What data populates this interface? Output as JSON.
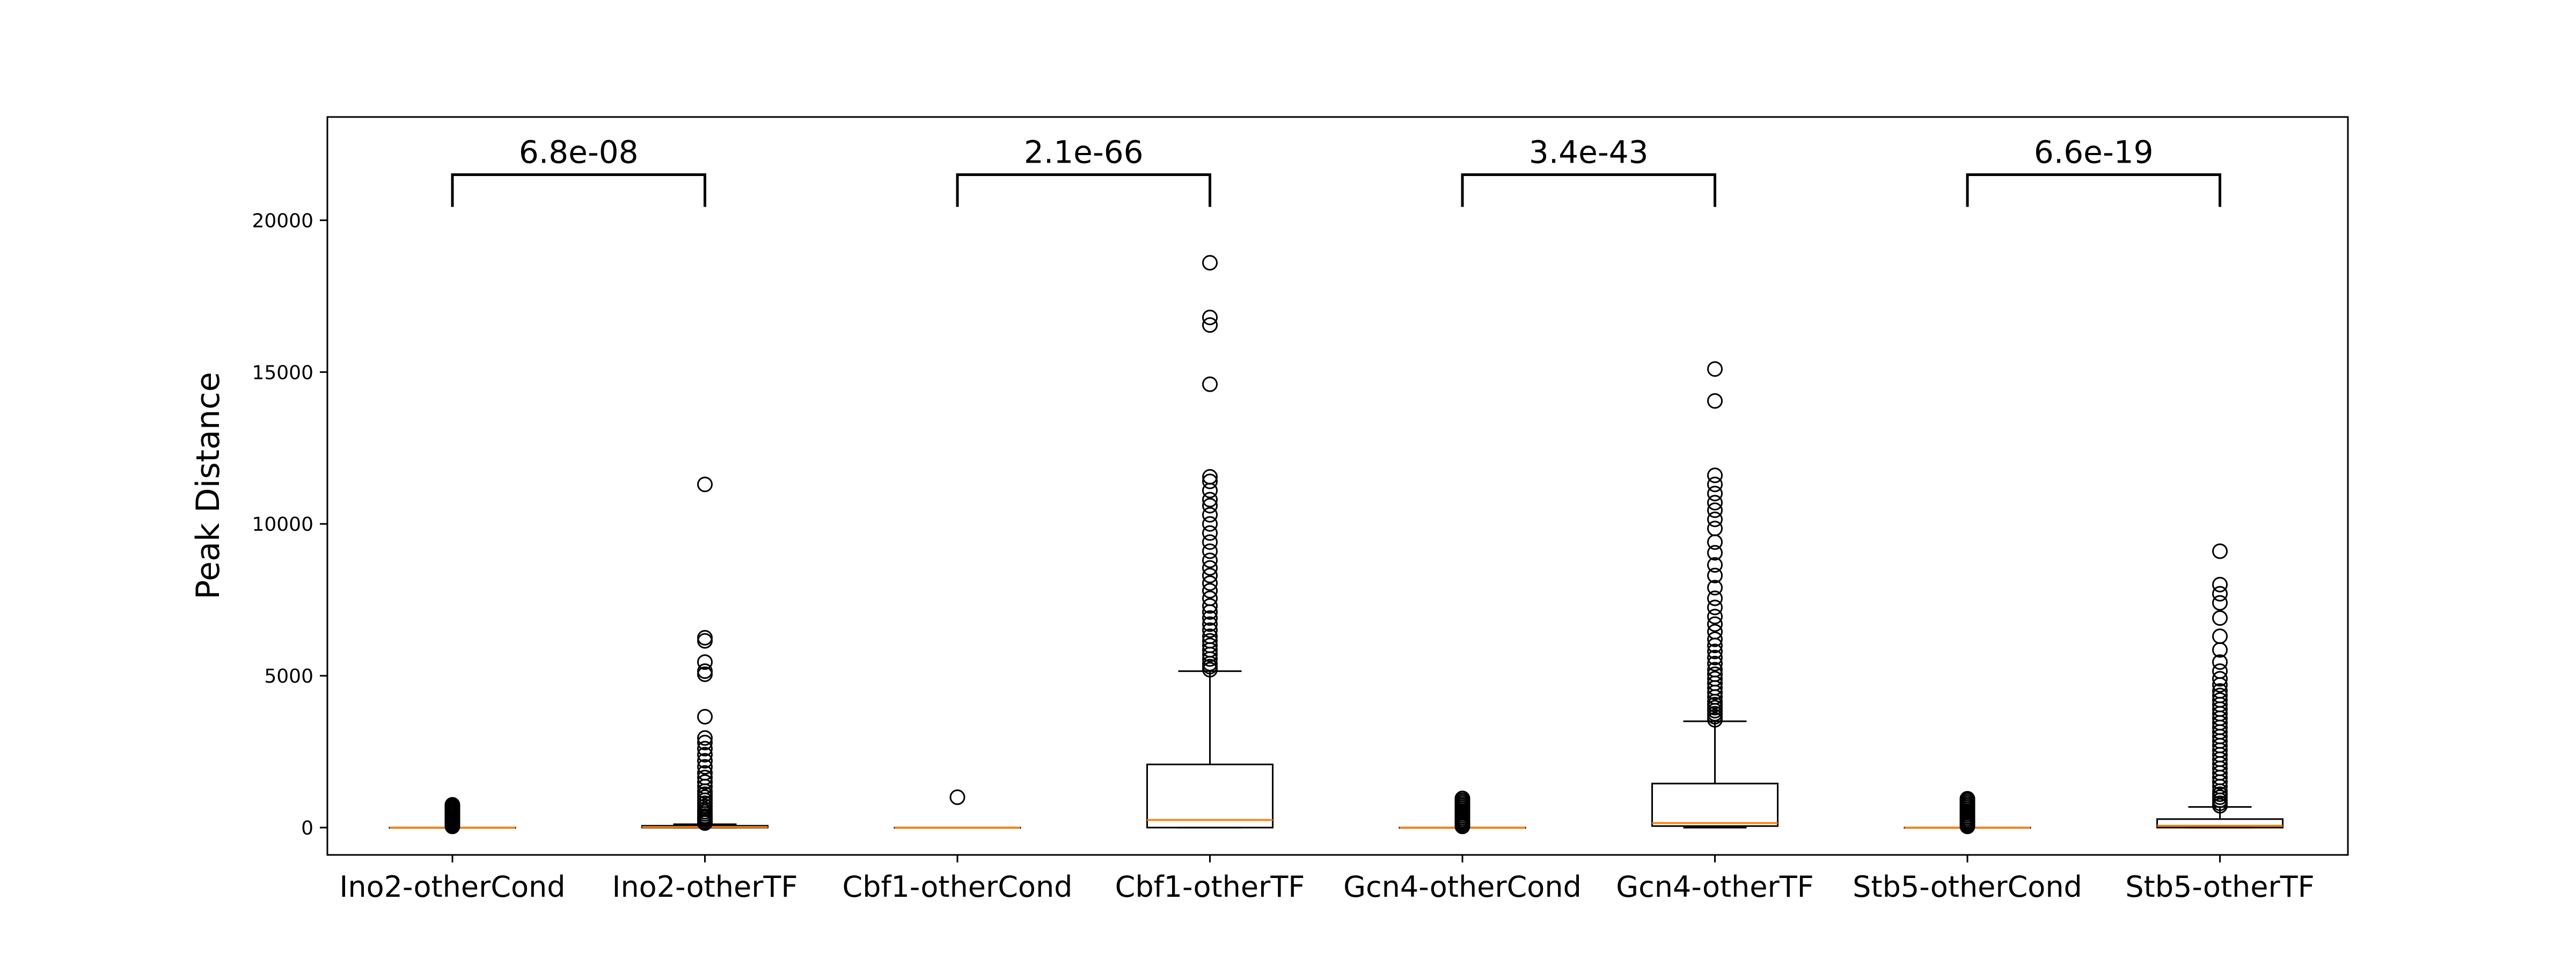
{
  "chart_data": {
    "type": "boxplot",
    "title": "",
    "xlabel": "",
    "ylabel": "Peak Distance",
    "ylim": [
      -900,
      23400
    ],
    "y_ticks": [
      0,
      5000,
      10000,
      15000,
      20000
    ],
    "grid": false,
    "legend": "none",
    "colors": {
      "box": "#000000",
      "median": "#ff7f0e",
      "flier": "#000000",
      "background": "#ffffff"
    },
    "categories": [
      "Ino2-otherCond",
      "Ino2-otherTF",
      "Cbf1-otherCond",
      "Cbf1-otherTF",
      "Gcn4-otherCond",
      "Gcn4-otherTF",
      "Stb5-otherCond",
      "Stb5-otherTF"
    ],
    "boxes": [
      {
        "q1": 0,
        "median": 0,
        "q3": 0,
        "whisker_low": 0,
        "whisker_high": 0,
        "fliers": [
          40,
          80,
          120,
          160,
          200,
          250,
          300,
          350,
          400,
          450,
          500,
          550,
          600,
          650,
          700,
          750
        ]
      },
      {
        "q1": 0,
        "median": 20,
        "q3": 60,
        "whisker_low": 0,
        "whisker_high": 110,
        "fliers": [
          150,
          200,
          260,
          320,
          380,
          450,
          520,
          600,
          700,
          800,
          900,
          1000,
          1100,
          1200,
          1350,
          1500,
          1650,
          1800,
          2000,
          2200,
          2400,
          2600,
          2800,
          2950,
          3650,
          5050,
          5150,
          5450,
          6150,
          6250,
          11300
        ]
      },
      {
        "q1": 0,
        "median": 0,
        "q3": 0,
        "whisker_low": 0,
        "whisker_high": 0,
        "fliers": [
          1000
        ]
      },
      {
        "q1": 0,
        "median": 250,
        "q3": 2080,
        "whisker_low": 0,
        "whisker_high": 5150,
        "fliers": [
          5200,
          5300,
          5400,
          5550,
          5700,
          5850,
          6000,
          6150,
          6300,
          6500,
          6700,
          6900,
          7100,
          7300,
          7550,
          7800,
          8050,
          8300,
          8550,
          8800,
          9100,
          9400,
          9700,
          10000,
          10300,
          10600,
          10800,
          11100,
          11400,
          11550,
          14600,
          16550,
          16800,
          18600
        ]
      },
      {
        "q1": 0,
        "median": 0,
        "q3": 0,
        "whisker_low": 0,
        "whisker_high": 0,
        "fliers": [
          40,
          90,
          140,
          190,
          240,
          300,
          360,
          420,
          480,
          540,
          600,
          660,
          720,
          780,
          840,
          900,
          960
        ]
      },
      {
        "q1": 50,
        "median": 150,
        "q3": 1450,
        "whisker_low": 0,
        "whisker_high": 3500,
        "fliers": [
          3550,
          3650,
          3750,
          3850,
          3950,
          4050,
          4150,
          4300,
          4450,
          4600,
          4750,
          4900,
          5050,
          5200,
          5400,
          5600,
          5800,
          6000,
          6200,
          6450,
          6700,
          6950,
          7250,
          7550,
          7900,
          8300,
          8650,
          9050,
          9400,
          9850,
          10150,
          10450,
          10700,
          11000,
          11300,
          11600,
          14050,
          15100
        ]
      },
      {
        "q1": 0,
        "median": 0,
        "q3": 0,
        "whisker_low": 0,
        "whisker_high": 0,
        "fliers": [
          40,
          90,
          140,
          190,
          240,
          300,
          360,
          420,
          480,
          540,
          600,
          660,
          720,
          780,
          840,
          900,
          950
        ]
      },
      {
        "q1": 0,
        "median": 60,
        "q3": 280,
        "whisker_low": 0,
        "whisker_high": 680,
        "fliers": [
          720,
          800,
          900,
          1000,
          1100,
          1200,
          1350,
          1500,
          1650,
          1800,
          1950,
          2100,
          2250,
          2400,
          2550,
          2700,
          2850,
          3000,
          3150,
          3300,
          3450,
          3600,
          3750,
          3900,
          4050,
          4200,
          4350,
          4500,
          4700,
          4900,
          5150,
          5450,
          5850,
          6300,
          6900,
          7400,
          7700,
          8000,
          9100
        ]
      }
    ],
    "comparisons": [
      {
        "from": 0,
        "to": 1,
        "label": "6.8e-08",
        "y": 21500
      },
      {
        "from": 2,
        "to": 3,
        "label": "2.1e-66",
        "y": 21500
      },
      {
        "from": 4,
        "to": 5,
        "label": "3.4e-43",
        "y": 21500
      },
      {
        "from": 6,
        "to": 7,
        "label": "6.6e-19",
        "y": 21500
      }
    ]
  }
}
